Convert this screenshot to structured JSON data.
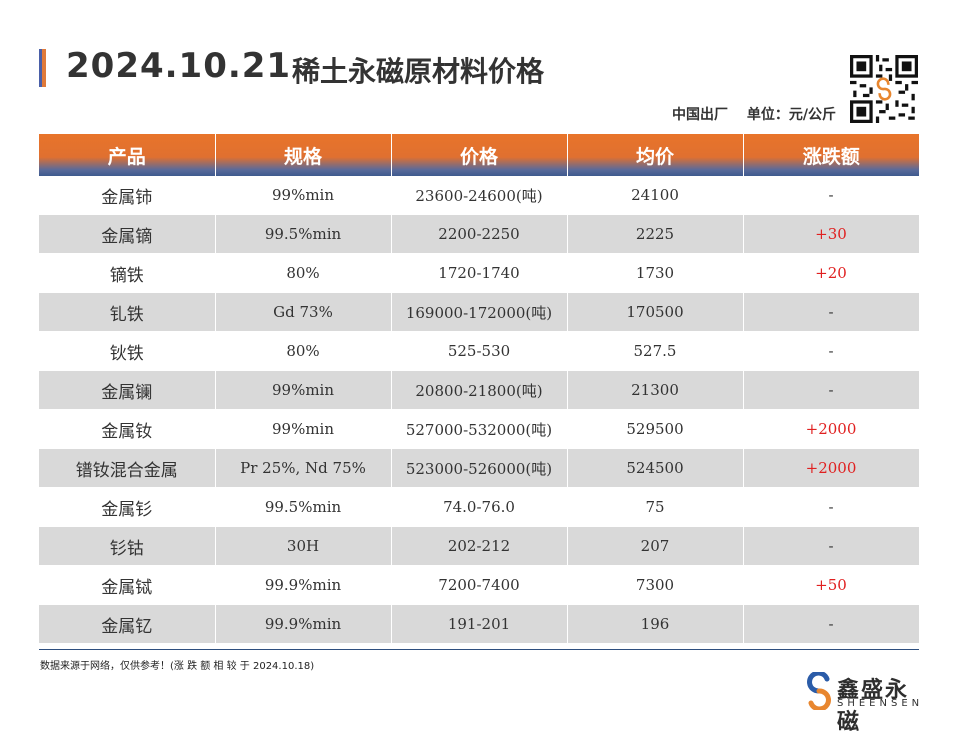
{
  "header": {
    "date": "2024.10.21",
    "title": "稀土永磁原材料价格",
    "origin": "中国出厂",
    "unit": "单位：元/公斤"
  },
  "table": {
    "columns": [
      "产品",
      "规格",
      "价格",
      "均价",
      "涨跌额"
    ],
    "rows": [
      {
        "product": "金属铈",
        "spec": "99%min",
        "price": "23600-24600(吨)",
        "avg": "24100",
        "change": "-"
      },
      {
        "product": "金属镝",
        "spec": "99.5%min",
        "price": "2200-2250",
        "avg": "2225",
        "change": "+30"
      },
      {
        "product": "镝铁",
        "spec": "80%",
        "price": "1720-1740",
        "avg": "1730",
        "change": "+20"
      },
      {
        "product": "钆铁",
        "spec": "Gd 73%",
        "price": "169000-172000(吨)",
        "avg": "170500",
        "change": "-"
      },
      {
        "product": "钬铁",
        "spec": "80%",
        "price": "525-530",
        "avg": "527.5",
        "change": "-"
      },
      {
        "product": "金属镧",
        "spec": "99%min",
        "price": "20800-21800(吨)",
        "avg": "21300",
        "change": "-"
      },
      {
        "product": "金属钕",
        "spec": "99%min",
        "price": "527000-532000(吨)",
        "avg": "529500",
        "change": "+2000"
      },
      {
        "product": "镨钕混合金属",
        "spec": "Pr 25%, Nd 75%",
        "price": "523000-526000(吨)",
        "avg": "524500",
        "change": "+2000"
      },
      {
        "product": "金属钐",
        "spec": "99.5%min",
        "price": "74.0-76.0",
        "avg": "75",
        "change": "-"
      },
      {
        "product": "钐钴",
        "spec": "30H",
        "price": "202-212",
        "avg": "207",
        "change": "-"
      },
      {
        "product": "金属铽",
        "spec": "99.9%min",
        "price": "7200-7400",
        "avg": "7300",
        "change": "+50"
      },
      {
        "product": "金属钇",
        "spec": "99.9%min",
        "price": "191-201",
        "avg": "196",
        "change": "-"
      }
    ]
  },
  "footnote": "数据来源于网络，仅供参考！(涨 跌 额 相 较 于 2024.10.18)",
  "logo": {
    "name_cn": "鑫盛永磁",
    "name_en": "SHEENSEN",
    "colors": {
      "blue": "#2b5ca8",
      "orange": "#e8862e"
    }
  },
  "colors": {
    "header_orange": "#e07030",
    "header_blue": "#3e5a8e",
    "row_alt": "#d9d9d9",
    "increase": "#e02020"
  }
}
